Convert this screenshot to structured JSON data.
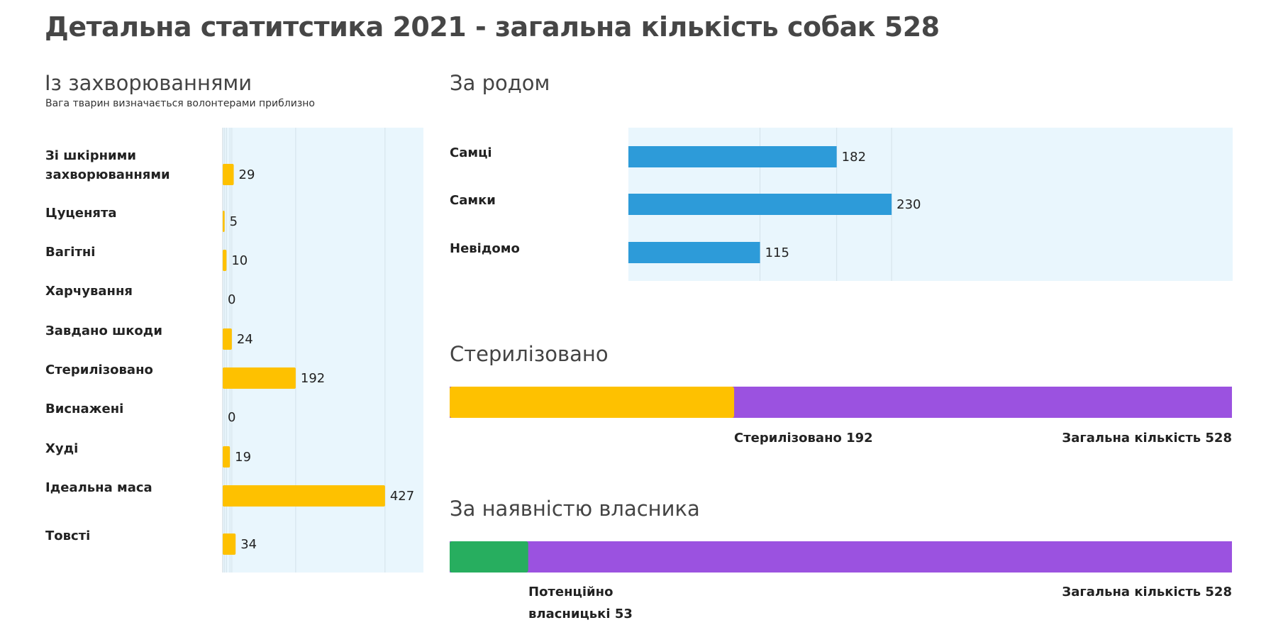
{
  "page": {
    "title": "Детальна статитстика 2021 - загальна кількість собак 528"
  },
  "colors": {
    "panel_bg": "#e9f6fd",
    "grid": "#d4e2ea",
    "yellow": "#fec100",
    "blue": "#2d9bd9",
    "purple": "#9b52e0",
    "green": "#27ae5f"
  },
  "diseases": {
    "title": "Із захворюваннями",
    "subtitle": "Вага тварин визначається волонтерами приблизно"
  },
  "gender": {
    "title": "За родом"
  },
  "sterilized": {
    "title": "Стерилізовано",
    "part_label": "Стерилізовано 192",
    "total_label": "Загальна кількість 528"
  },
  "owner": {
    "title": "За наявністю власника",
    "part_label_line1": "Потенційно",
    "part_label_line2": "власницькі 53",
    "total_label": "Загальна кількість 528"
  },
  "chart_data": [
    {
      "type": "bar",
      "orientation": "horizontal",
      "title": "Із захворюваннями",
      "subtitle": "Вага тварин визначається волонтерами приблизно",
      "categories": [
        "Зі шкірними захворюваннями",
        "Цуценята",
        "Вагітні",
        "Харчування",
        "Завдано шкоди",
        "Стерилізовано",
        "Виснажені",
        "Худі",
        "Ідеальна маса",
        "Товсті"
      ],
      "values": [
        29,
        5,
        10,
        0,
        24,
        192,
        0,
        19,
        427,
        34
      ],
      "xlim": [
        0,
        528
      ],
      "grid": true,
      "color": "#fec100"
    },
    {
      "type": "bar",
      "orientation": "horizontal",
      "title": "За родом",
      "categories": [
        "Самці",
        "Самки",
        "Невідомо"
      ],
      "values": [
        182,
        230,
        115
      ],
      "xlim": [
        0,
        528
      ],
      "grid": true,
      "color": "#2d9bd9"
    },
    {
      "type": "bar",
      "orientation": "horizontal",
      "stacked": true,
      "title": "Стерилізовано",
      "values": [
        192,
        528
      ],
      "labels": [
        "Стерилізовано 192",
        "Загальна кількість 528"
      ],
      "xlim": [
        0,
        528
      ],
      "colors": [
        "#fec100",
        "#9b52e0"
      ]
    },
    {
      "type": "bar",
      "orientation": "horizontal",
      "stacked": true,
      "title": "За наявністю власника",
      "values": [
        53,
        528
      ],
      "labels": [
        "Потенційно власницькі 53",
        "Загальна кількість 528"
      ],
      "xlim": [
        0,
        528
      ],
      "colors": [
        "#27ae5f",
        "#9b52e0"
      ]
    }
  ]
}
